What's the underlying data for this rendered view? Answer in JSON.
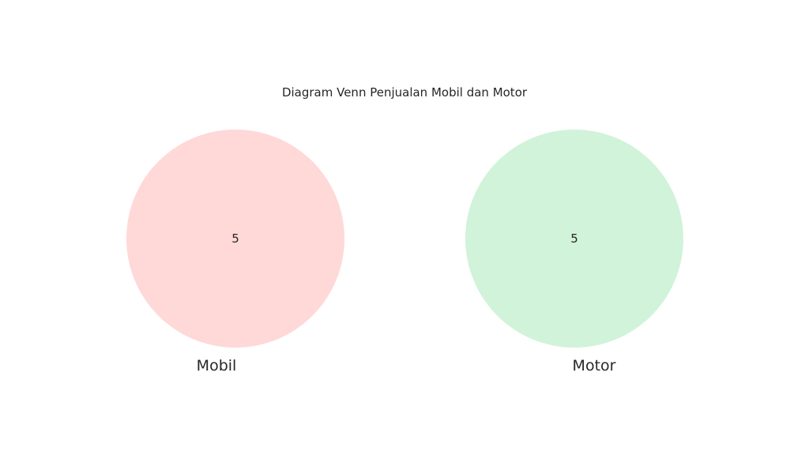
{
  "title": "Diagram Venn Penjualan Mobil dan Motor",
  "sets": [
    {
      "name": "Mobil",
      "count": "5",
      "color": "#ffd8d8"
    },
    {
      "name": "Motor",
      "count": "5",
      "color": "#d1f3d9"
    }
  ]
}
